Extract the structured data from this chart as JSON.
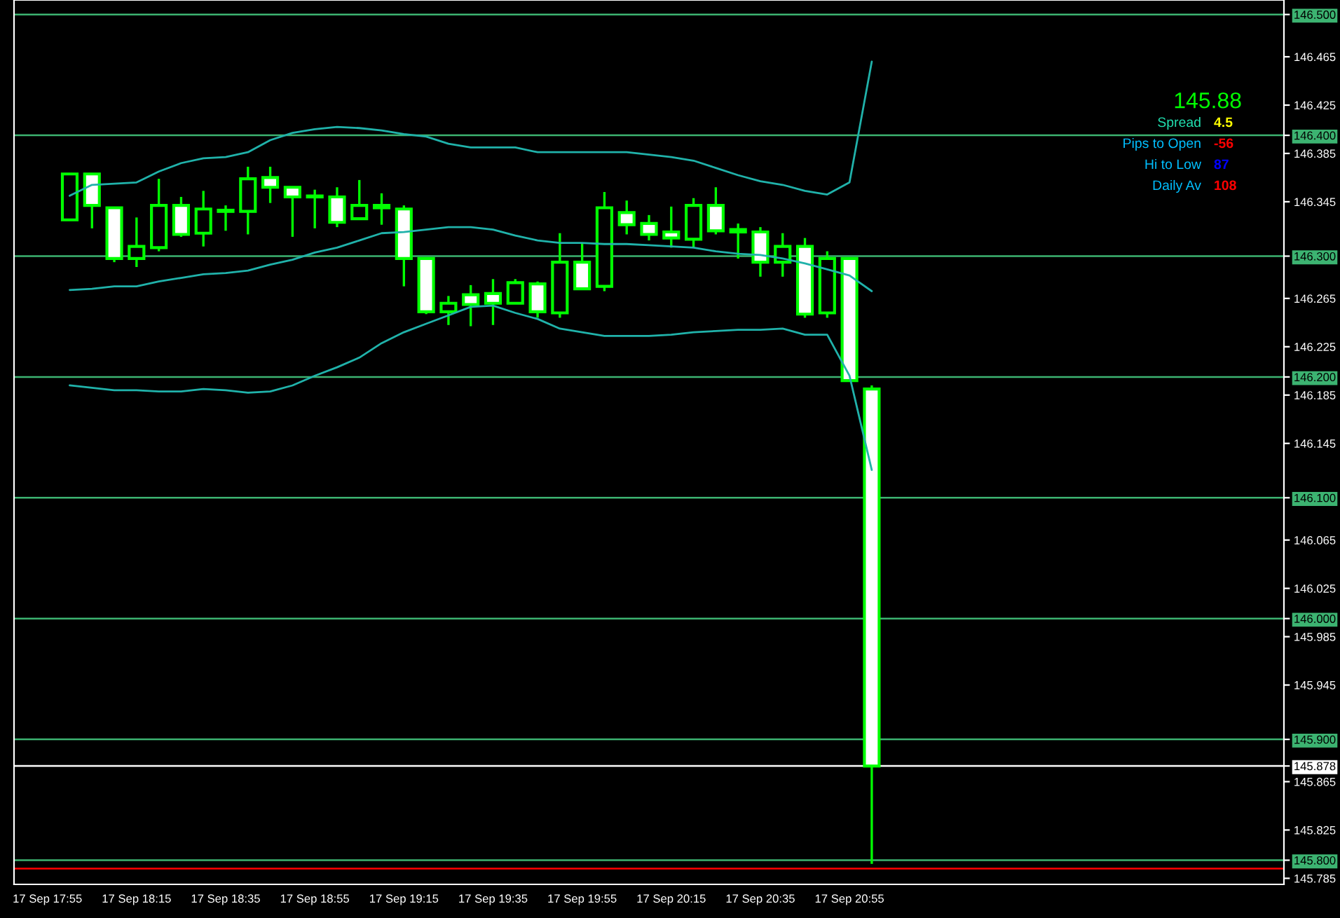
{
  "chart_data": {
    "type": "candlestick",
    "categories": [
      "17 Sep 17:55",
      null,
      null,
      null,
      "17 Sep 18:15",
      null,
      null,
      null,
      "17 Sep 18:35",
      null,
      null,
      null,
      "17 Sep 18:55",
      null,
      null,
      null,
      "17 Sep 19:15",
      null,
      null,
      null,
      "17 Sep 19:35",
      null,
      null,
      null,
      "17 Sep 19:55",
      null,
      null,
      null,
      "17 Sep 20:15",
      null,
      null,
      null,
      "17 Sep 20:35",
      null,
      null,
      null,
      "17 Sep 20:55",
      null
    ],
    "series": [
      {
        "type": "line",
        "color": "#20b2aa",
        "values": [
          null,
          146.35,
          146.359,
          146.36,
          146.361,
          146.37,
          146.377,
          146.381,
          146.382,
          146.386,
          146.396,
          146.402,
          146.405,
          146.407,
          146.406,
          146.404,
          146.401,
          146.399,
          146.393,
          146.39,
          146.39,
          146.39,
          146.386,
          146.386,
          146.386,
          146.386,
          146.386,
          146.384,
          146.382,
          146.379,
          146.373,
          146.367,
          146.362,
          146.359,
          146.354,
          146.351,
          146.361,
          146.461
        ]
      },
      {
        "type": "line",
        "color": "#20b2aa",
        "values": [
          null,
          146.272,
          146.273,
          146.275,
          146.275,
          146.279,
          146.282,
          146.285,
          146.286,
          146.288,
          146.293,
          146.297,
          146.303,
          146.307,
          146.313,
          146.319,
          146.32,
          146.322,
          146.324,
          146.324,
          146.322,
          146.317,
          146.313,
          146.311,
          146.311,
          146.31,
          146.31,
          146.309,
          146.308,
          146.307,
          146.304,
          146.302,
          146.301,
          146.298,
          146.294,
          146.289,
          146.284,
          146.271
        ]
      },
      {
        "type": "line",
        "color": "#20b2aa",
        "values": [
          null,
          146.193,
          146.191,
          146.189,
          146.189,
          146.188,
          146.188,
          146.19,
          146.189,
          146.187,
          146.188,
          146.193,
          146.201,
          146.208,
          146.216,
          146.228,
          146.237,
          146.244,
          146.251,
          146.258,
          146.259,
          146.253,
          146.248,
          146.24,
          146.237,
          146.234,
          146.234,
          146.234,
          146.235,
          146.237,
          146.238,
          146.239,
          146.239,
          146.24,
          146.235,
          146.235,
          146.201,
          146.123
        ]
      },
      {
        "color": "#00ff00",
        "ohlc": [
          null,
          [
            146.33,
            146.368,
            146.33,
            146.368
          ],
          [
            146.368,
            146.368,
            146.323,
            146.342
          ],
          [
            146.34,
            146.34,
            146.295,
            146.298
          ],
          [
            146.298,
            146.332,
            146.291,
            146.308
          ],
          [
            146.307,
            146.364,
            146.304,
            146.342
          ],
          [
            146.342,
            146.349,
            146.316,
            146.318
          ],
          [
            146.319,
            146.354,
            146.308,
            146.339
          ],
          [
            146.338,
            146.342,
            146.321,
            146.337
          ],
          [
            146.337,
            146.374,
            146.318,
            146.364
          ],
          [
            146.365,
            146.374,
            146.344,
            146.357
          ],
          [
            146.357,
            146.357,
            146.316,
            146.349
          ],
          [
            146.349,
            146.355,
            146.323,
            146.349
          ],
          [
            146.349,
            146.357,
            146.324,
            146.328
          ],
          [
            146.331,
            146.363,
            146.331,
            146.342
          ],
          [
            146.342,
            146.352,
            146.326,
            146.34
          ],
          [
            146.339,
            146.342,
            146.275,
            146.298
          ],
          [
            146.298,
            146.298,
            146.252,
            146.254
          ],
          [
            146.254,
            146.267,
            146.243,
            146.261
          ],
          [
            146.268,
            146.276,
            146.242,
            146.26
          ],
          [
            146.269,
            146.281,
            146.243,
            146.261
          ],
          [
            146.261,
            146.281,
            146.261,
            146.278
          ],
          [
            146.277,
            146.279,
            146.249,
            146.254
          ],
          [
            146.253,
            146.319,
            146.249,
            146.295
          ],
          [
            146.295,
            146.311,
            146.273,
            146.273
          ],
          [
            146.275,
            146.353,
            146.271,
            146.34
          ],
          [
            146.336,
            146.346,
            146.318,
            146.326
          ],
          [
            146.327,
            146.334,
            146.313,
            146.318
          ],
          [
            146.32,
            146.341,
            146.307,
            146.315
          ],
          [
            146.314,
            146.348,
            146.307,
            146.342
          ],
          [
            146.342,
            146.357,
            146.318,
            146.321
          ],
          [
            146.322,
            146.327,
            146.298,
            146.32
          ],
          [
            146.32,
            146.324,
            146.283,
            146.295
          ],
          [
            146.295,
            146.319,
            146.283,
            146.308
          ],
          [
            146.308,
            146.315,
            146.249,
            146.252
          ],
          [
            146.253,
            146.304,
            146.249,
            146.298
          ],
          [
            146.298,
            146.298,
            146.197,
            146.197
          ],
          [
            146.19,
            146.193,
            145.797,
            145.878
          ]
        ]
      }
    ],
    "ylim": [
      145.78,
      146.512
    ],
    "yticks": [
      {
        "value": 145.785,
        "label": "145.785"
      },
      {
        "value": 145.8,
        "label": "145.800"
      },
      {
        "value": 145.825,
        "label": "145.825"
      },
      {
        "value": 145.865,
        "label": "145.865"
      },
      {
        "value": 145.878,
        "label": "145.878"
      },
      {
        "value": 145.9,
        "label": "145.900"
      },
      {
        "value": 145.945,
        "label": "145.945"
      },
      {
        "value": 145.985,
        "label": "145.985"
      },
      {
        "value": 146.0,
        "label": "146.000"
      },
      {
        "value": 146.025,
        "label": "146.025"
      },
      {
        "value": 146.065,
        "label": "146.065"
      },
      {
        "value": 146.1,
        "label": "146.100"
      },
      {
        "value": 146.145,
        "label": "146.145"
      },
      {
        "value": 146.185,
        "label": "146.185"
      },
      {
        "value": 146.2,
        "label": "146.200"
      },
      {
        "value": 146.225,
        "label": "146.225"
      },
      {
        "value": 146.265,
        "label": "146.265"
      },
      {
        "value": 146.3,
        "label": "146.300"
      },
      {
        "value": 146.345,
        "label": "146.345"
      },
      {
        "value": 146.385,
        "label": "146.385"
      },
      {
        "value": 146.4,
        "label": "146.400"
      },
      {
        "value": 146.425,
        "label": "146.425"
      },
      {
        "value": 146.465,
        "label": "146.465"
      },
      {
        "value": 146.5,
        "label": "146.500"
      }
    ],
    "ref_lines": [
      {
        "axis": "y",
        "value": 146.5,
        "color": "#3cb371"
      },
      {
        "axis": "y",
        "value": 146.4,
        "color": "#3cb371"
      },
      {
        "axis": "y",
        "value": 146.3,
        "color": "#3cb371"
      },
      {
        "axis": "y",
        "value": 146.2,
        "color": "#3cb371"
      },
      {
        "axis": "y",
        "value": 146.1,
        "color": "#3cb371"
      },
      {
        "axis": "y",
        "value": 146.0,
        "color": "#3cb371"
      },
      {
        "axis": "y",
        "value": 145.9,
        "color": "#3cb371"
      },
      {
        "axis": "y",
        "value": 145.8,
        "color": "#3cb371"
      },
      {
        "axis": "y",
        "value": 145.878,
        "color": "#ffffff"
      },
      {
        "axis": "y",
        "value": 145.793,
        "color": "#ff0000"
      }
    ],
    "annotations": [
      "145.88",
      "Spread",
      "4.5",
      "Pips to Open",
      "-56",
      "Hi to Low",
      "87",
      "Daily Av",
      "108"
    ],
    "grid": false,
    "legend": false
  }
}
